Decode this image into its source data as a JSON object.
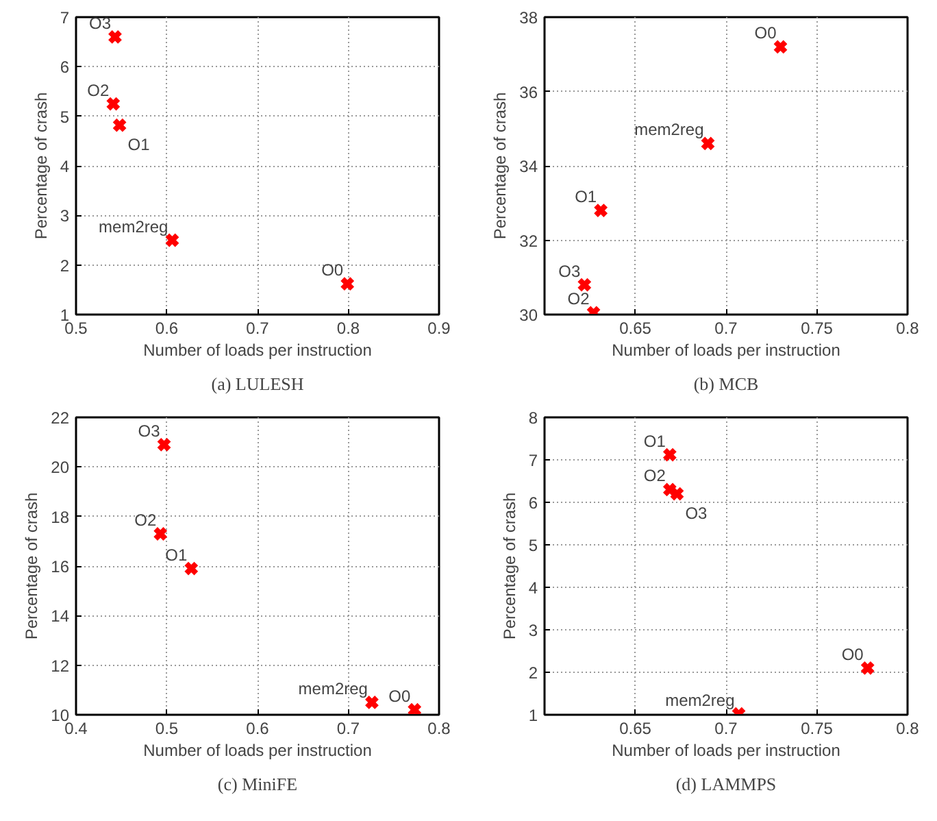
{
  "chart_data": [
    {
      "type": "scatter",
      "title": "(a) LULESH",
      "xlabel": "Number of loads per instruction",
      "ylabel": "Percentage of crash",
      "x": [
        0.543,
        0.541,
        0.548,
        0.606,
        0.799
      ],
      "values": [
        6.6,
        5.25,
        4.82,
        2.5,
        1.62
      ],
      "color": "#ff0000",
      "marker": "cross",
      "xlim": [
        0.5,
        0.9
      ],
      "xticks": [
        0.5,
        0.6,
        0.7,
        0.8,
        0.9
      ],
      "ylim": [
        1,
        7
      ],
      "yticks": [
        1,
        2,
        3,
        4,
        5,
        6,
        7
      ],
      "grid": true,
      "annotations": [
        {
          "text": "O3",
          "x": 0.543,
          "y": 6.6
        },
        {
          "text": "O2",
          "x": 0.541,
          "y": 5.25
        },
        {
          "text": "O1",
          "x": 0.548,
          "y": 4.82
        },
        {
          "text": "mem2reg",
          "x": 0.606,
          "y": 2.5
        },
        {
          "text": "O0",
          "x": 0.799,
          "y": 1.62
        }
      ]
    },
    {
      "type": "scatter",
      "title": "(b) MCB",
      "xlabel": "Number of loads per instruction",
      "ylabel": "Percentage of crash",
      "x": [
        0.73,
        0.69,
        0.631,
        0.622,
        0.627
      ],
      "values": [
        37.2,
        34.6,
        32.8,
        30.8,
        30.05
      ],
      "color": "#ff0000",
      "marker": "cross",
      "xlim": [
        0.6,
        0.8
      ],
      "xticks": [
        0.65,
        0.7,
        0.75,
        0.8
      ],
      "ylim": [
        30,
        38
      ],
      "yticks": [
        30,
        32,
        34,
        36,
        38
      ],
      "grid": true,
      "annotations": [
        {
          "text": "O0",
          "x": 0.73,
          "y": 37.2
        },
        {
          "text": "mem2reg",
          "x": 0.69,
          "y": 34.6
        },
        {
          "text": "O1",
          "x": 0.631,
          "y": 32.8
        },
        {
          "text": "O3",
          "x": 0.622,
          "y": 30.8
        },
        {
          "text": "O2",
          "x": 0.627,
          "y": 30.05
        }
      ]
    },
    {
      "type": "scatter",
      "title": "(c) MiniFE",
      "xlabel": "Number of loads per instruction",
      "ylabel": "Percentage of crash",
      "x": [
        0.497,
        0.493,
        0.527,
        0.726,
        0.773
      ],
      "values": [
        20.9,
        17.3,
        15.9,
        10.5,
        10.2
      ],
      "color": "#ff0000",
      "marker": "cross",
      "xlim": [
        0.4,
        0.8
      ],
      "xticks": [
        0.4,
        0.5,
        0.6,
        0.7,
        0.8
      ],
      "ylim": [
        10,
        22
      ],
      "yticks": [
        10,
        12,
        14,
        16,
        18,
        20,
        22
      ],
      "grid": true,
      "annotations": [
        {
          "text": "O3",
          "x": 0.497,
          "y": 20.9
        },
        {
          "text": "O2",
          "x": 0.493,
          "y": 17.3
        },
        {
          "text": "O1",
          "x": 0.527,
          "y": 15.9
        },
        {
          "text": "mem2reg",
          "x": 0.726,
          "y": 10.5
        },
        {
          "text": "O0",
          "x": 0.773,
          "y": 10.2
        }
      ]
    },
    {
      "type": "scatter",
      "title": "(d) LAMMPS",
      "xlabel": "Number of loads per instruction",
      "ylabel": "Percentage of crash",
      "x": [
        0.669,
        0.669,
        0.673,
        0.707,
        0.778
      ],
      "values": [
        7.12,
        6.3,
        6.2,
        1.02,
        2.1
      ],
      "color": "#ff0000",
      "marker": "cross",
      "xlim": [
        0.6,
        0.8
      ],
      "xticks": [
        0.65,
        0.7,
        0.75,
        0.8
      ],
      "ylim": [
        1,
        8
      ],
      "yticks": [
        1,
        2,
        3,
        4,
        5,
        6,
        7,
        8
      ],
      "grid": true,
      "annotations": [
        {
          "text": "O1",
          "x": 0.669,
          "y": 7.12
        },
        {
          "text": "O2",
          "x": 0.669,
          "y": 6.3
        },
        {
          "text": "O3",
          "x": 0.673,
          "y": 6.2
        },
        {
          "text": "mem2reg",
          "x": 0.707,
          "y": 1.02
        },
        {
          "text": "O0",
          "x": 0.778,
          "y": 2.1
        }
      ]
    }
  ]
}
